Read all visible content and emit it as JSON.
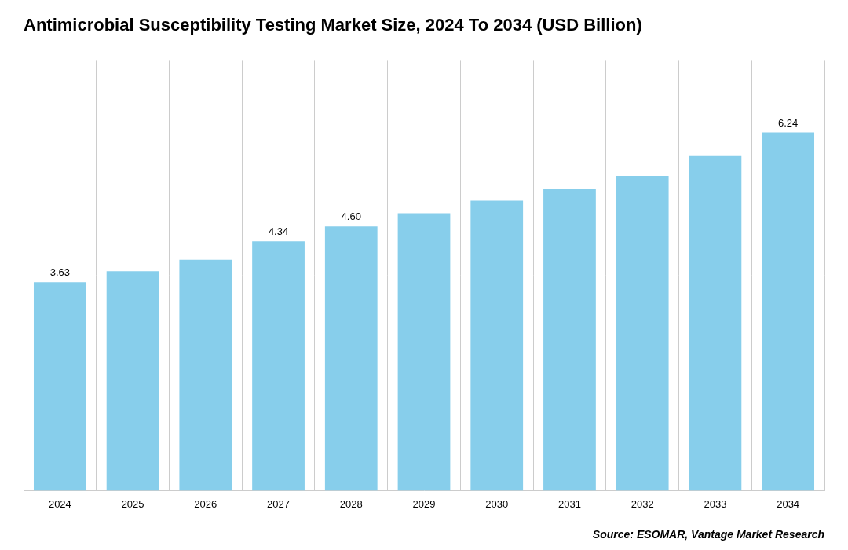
{
  "chart_data": {
    "type": "bar",
    "title": "Antimicrobial Susceptibility Testing Market Size, 2024 To 2034 (USD Billion)",
    "categories": [
      "2024",
      "2025",
      "2026",
      "2027",
      "2028",
      "2029",
      "2030",
      "2031",
      "2032",
      "2033",
      "2034"
    ],
    "values": [
      3.63,
      3.82,
      4.02,
      4.34,
      4.6,
      4.83,
      5.05,
      5.26,
      5.48,
      5.84,
      6.24
    ],
    "value_labels": [
      "3.63",
      null,
      null,
      "4.34",
      "4.60",
      null,
      null,
      null,
      null,
      null,
      "6.24"
    ],
    "color": "#87CEEB",
    "ylim": [
      0,
      7.5
    ],
    "grid": "x",
    "tick_labels": "x",
    "annotations": [
      "Source: ESOMAR, Vantage Market Research"
    ]
  }
}
